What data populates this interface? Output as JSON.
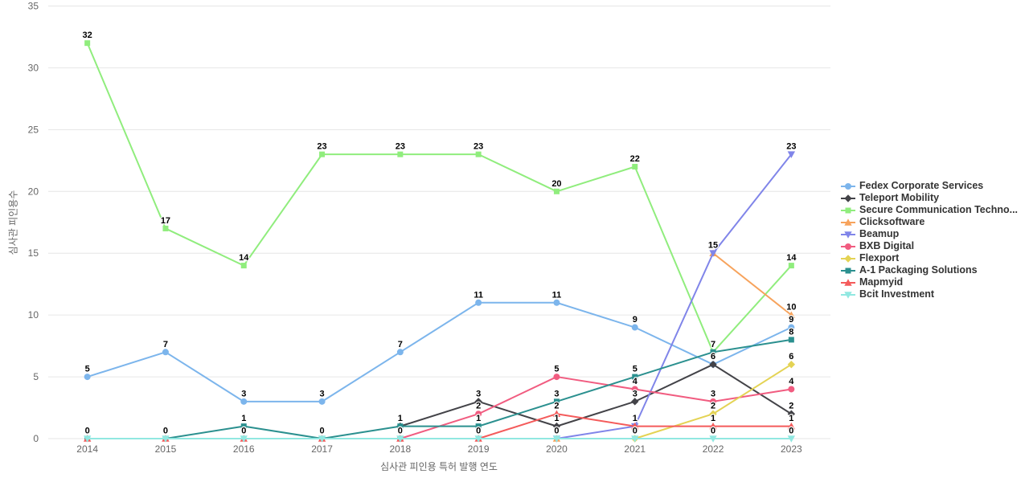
{
  "chart_data": {
    "type": "line",
    "title": "",
    "xlabel": "심사관 피인용 특허 발행 연도",
    "ylabel": "심사관 피인용수",
    "categories": [
      "2014",
      "2015",
      "2016",
      "2017",
      "2018",
      "2019",
      "2020",
      "2021",
      "2022",
      "2023"
    ],
    "ylim": [
      0,
      35
    ],
    "yticks": [
      0,
      5,
      10,
      15,
      20,
      25,
      30,
      35
    ],
    "grid": "horizontal-only",
    "gridline_color": "#e6e6e6",
    "axis_text_color": "#666666",
    "legend_position": "right-middle",
    "legend_text_color": "#333333",
    "data_labels_shown": true,
    "series": [
      {
        "name": "Fedex Corporate Services",
        "color": "#7cb5ec",
        "marker": "circle",
        "values": [
          5,
          7,
          3,
          3,
          7,
          11,
          11,
          9,
          6,
          9
        ]
      },
      {
        "name": "Teleport Mobility",
        "color": "#434348",
        "marker": "diamond",
        "values": [
          null,
          null,
          null,
          null,
          1,
          3,
          1,
          3,
          6,
          2
        ]
      },
      {
        "name": "Secure Communication Techno...",
        "color": "#90ed7d",
        "marker": "square",
        "values": [
          32,
          17,
          14,
          23,
          23,
          23,
          20,
          22,
          7,
          14
        ]
      },
      {
        "name": "Clicksoftware",
        "color": "#f7a35c",
        "marker": "triangle",
        "values": [
          null,
          null,
          null,
          null,
          null,
          null,
          0,
          null,
          15,
          10
        ]
      },
      {
        "name": "Beamup",
        "color": "#8085e9",
        "marker": "triangle-down",
        "values": [
          null,
          null,
          null,
          null,
          null,
          null,
          0,
          1,
          15,
          23
        ]
      },
      {
        "name": "BXB Digital",
        "color": "#f15c80",
        "marker": "circle",
        "values": [
          null,
          null,
          null,
          null,
          0,
          2,
          5,
          4,
          3,
          4
        ]
      },
      {
        "name": "Flexport",
        "color": "#e4d354",
        "marker": "diamond",
        "values": [
          null,
          null,
          null,
          null,
          null,
          null,
          null,
          0,
          2,
          6
        ]
      },
      {
        "name": "A-1 Packaging Solutions",
        "color": "#2b908f",
        "marker": "square",
        "values": [
          0,
          0,
          1,
          0,
          1,
          1,
          3,
          5,
          7,
          8
        ]
      },
      {
        "name": "Mapmyid",
        "color": "#f45b5b",
        "marker": "triangle",
        "values": [
          0,
          0,
          0,
          0,
          0,
          0,
          2,
          1,
          1,
          1
        ]
      },
      {
        "name": "Bcit Investment",
        "color": "#91e8e1",
        "marker": "triangle-down",
        "values": [
          0,
          0,
          0,
          0,
          0,
          0,
          0,
          0,
          0,
          0
        ]
      }
    ]
  }
}
